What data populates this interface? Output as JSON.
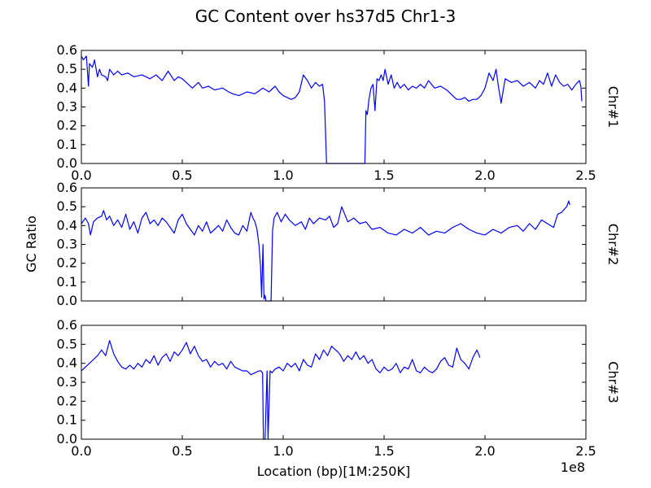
{
  "figure": {
    "title": "GC Content over hs37d5 Chr1-3",
    "ylabel": "GC Ratio",
    "xlabel": "Location (bp)[1M:250K]",
    "x_offset_label": "1e8",
    "line_color": "#0000ff"
  },
  "chart_data": [
    {
      "type": "line",
      "title": "GC Content over hs37d5 Chr1-3",
      "panel_label": "Chr#1",
      "xlabel": "Location (bp)[1M:250K]",
      "ylabel": "GC Ratio",
      "xlim": [
        0,
        250000000
      ],
      "ylim": [
        0.0,
        0.6
      ],
      "xticks": [
        "0.0",
        "0.5",
        "1.0",
        "1.5",
        "2.0",
        "2.5"
      ],
      "yticks": [
        "0.0",
        "0.1",
        "0.2",
        "0.3",
        "0.4",
        "0.5",
        "0.6"
      ],
      "grid": false,
      "x": [
        0,
        1000000,
        2500000,
        3500000,
        4000000,
        5500000,
        6500000,
        8000000,
        9000000,
        10000000,
        12000000,
        13000000,
        14000000,
        16000000,
        18000000,
        20000000,
        23000000,
        26000000,
        30000000,
        34000000,
        37000000,
        40000000,
        43000000,
        46000000,
        48000000,
        50000000,
        52000000,
        55000000,
        58000000,
        60000000,
        63000000,
        66000000,
        70000000,
        73000000,
        75000000,
        78000000,
        82000000,
        86000000,
        90000000,
        93000000,
        96000000,
        98000000,
        100000000,
        102000000,
        104000000,
        106000000,
        108000000,
        110000000,
        112000000,
        114000000,
        116000000,
        118000000,
        119500000,
        120500000,
        121500000,
        125000000,
        130000000,
        135000000,
        140500000,
        141000000,
        141700000,
        142500000,
        143500000,
        144500000,
        145500000,
        146500000,
        147500000,
        148500000,
        149500000,
        150500000,
        152000000,
        153500000,
        155000000,
        156500000,
        158000000,
        160000000,
        162000000,
        164000000,
        166000000,
        168000000,
        170000000,
        172000000,
        175000000,
        178000000,
        181000000,
        184000000,
        186000000,
        188000000,
        190000000,
        192000000,
        194000000,
        196000000,
        198000000,
        200000000,
        202000000,
        204000000,
        205500000,
        206500000,
        208000000,
        210000000,
        213000000,
        216000000,
        219000000,
        222000000,
        225000000,
        227000000,
        229000000,
        231000000,
        233000000,
        235000000,
        237000000,
        239000000,
        241000000,
        243000000,
        245000000,
        246800000,
        247500000,
        248000000
      ],
      "series": [
        {
          "values": [
            0.57,
            0.55,
            0.57,
            0.41,
            0.53,
            0.51,
            0.55,
            0.46,
            0.5,
            0.47,
            0.46,
            0.44,
            0.5,
            0.47,
            0.49,
            0.47,
            0.48,
            0.46,
            0.47,
            0.45,
            0.47,
            0.44,
            0.49,
            0.44,
            0.46,
            0.45,
            0.43,
            0.4,
            0.43,
            0.4,
            0.41,
            0.39,
            0.4,
            0.38,
            0.37,
            0.36,
            0.38,
            0.37,
            0.4,
            0.38,
            0.41,
            0.38,
            0.36,
            0.35,
            0.34,
            0.35,
            0.38,
            0.47,
            0.44,
            0.4,
            0.43,
            0.41,
            0.42,
            0.33,
            0.0,
            0.0,
            0.0,
            0.0,
            0.0,
            0.28,
            0.26,
            0.34,
            0.4,
            0.42,
            0.28,
            0.45,
            0.44,
            0.47,
            0.44,
            0.5,
            0.42,
            0.47,
            0.4,
            0.43,
            0.4,
            0.42,
            0.39,
            0.41,
            0.4,
            0.42,
            0.4,
            0.44,
            0.4,
            0.41,
            0.39,
            0.36,
            0.34,
            0.34,
            0.35,
            0.33,
            0.34,
            0.34,
            0.36,
            0.4,
            0.48,
            0.44,
            0.5,
            0.42,
            0.32,
            0.45,
            0.43,
            0.44,
            0.41,
            0.43,
            0.4,
            0.44,
            0.42,
            0.48,
            0.41,
            0.47,
            0.43,
            0.41,
            0.42,
            0.39,
            0.42,
            0.44,
            0.41,
            0.33
          ]
        }
      ]
    },
    {
      "type": "line",
      "panel_label": "Chr#2",
      "xlim": [
        0,
        250000000
      ],
      "ylim": [
        0.0,
        0.6
      ],
      "yticks": [
        "0.0",
        "0.1",
        "0.2",
        "0.3",
        "0.4",
        "0.5",
        "0.6"
      ],
      "grid": false,
      "x": [
        0,
        2000000,
        3500000,
        4500000,
        6000000,
        8000000,
        10000000,
        11000000,
        12500000,
        14000000,
        16000000,
        18000000,
        20000000,
        22000000,
        24000000,
        26000000,
        28000000,
        30000000,
        32000000,
        34000000,
        36000000,
        38000000,
        40000000,
        42000000,
        44000000,
        46000000,
        48000000,
        50000000,
        52000000,
        54000000,
        56000000,
        58000000,
        60000000,
        62000000,
        64000000,
        66000000,
        68000000,
        70000000,
        72000000,
        74000000,
        76000000,
        78000000,
        80000000,
        82000000,
        84000000,
        85000000,
        86000000,
        87000000,
        88000000,
        88800000,
        89300000,
        90000000,
        90500000,
        91000000,
        91500000,
        92000000,
        93000000,
        94000000,
        94700000,
        95500000,
        97000000,
        99000000,
        101000000,
        103000000,
        106000000,
        109000000,
        111000000,
        113000000,
        115000000,
        118000000,
        121000000,
        123000000,
        125000000,
        127000000,
        129000000,
        132000000,
        135000000,
        138000000,
        141000000,
        144000000,
        148000000,
        152000000,
        156000000,
        160000000,
        164000000,
        168000000,
        172000000,
        176000000,
        180000000,
        184000000,
        188000000,
        192000000,
        196000000,
        200000000,
        204000000,
        208000000,
        212000000,
        216000000,
        219000000,
        222000000,
        225000000,
        228000000,
        231000000,
        234000000,
        236000000,
        238000000,
        239500000,
        240500000,
        241500000,
        242000000
      ],
      "series": [
        {
          "values": [
            0.41,
            0.44,
            0.41,
            0.35,
            0.42,
            0.44,
            0.45,
            0.48,
            0.43,
            0.45,
            0.4,
            0.43,
            0.39,
            0.46,
            0.38,
            0.42,
            0.36,
            0.44,
            0.47,
            0.41,
            0.43,
            0.4,
            0.44,
            0.42,
            0.39,
            0.36,
            0.43,
            0.46,
            0.41,
            0.38,
            0.35,
            0.4,
            0.37,
            0.42,
            0.36,
            0.38,
            0.4,
            0.37,
            0.43,
            0.39,
            0.36,
            0.35,
            0.4,
            0.37,
            0.47,
            0.44,
            0.42,
            0.38,
            0.3,
            0.18,
            0.02,
            0.3,
            0.01,
            0.03,
            0.0,
            0.0,
            0.0,
            0.0,
            0.37,
            0.44,
            0.47,
            0.42,
            0.46,
            0.43,
            0.4,
            0.42,
            0.38,
            0.44,
            0.41,
            0.44,
            0.43,
            0.45,
            0.39,
            0.41,
            0.5,
            0.42,
            0.44,
            0.41,
            0.42,
            0.38,
            0.39,
            0.36,
            0.35,
            0.38,
            0.36,
            0.39,
            0.35,
            0.37,
            0.36,
            0.39,
            0.41,
            0.38,
            0.36,
            0.35,
            0.38,
            0.36,
            0.39,
            0.4,
            0.37,
            0.41,
            0.38,
            0.43,
            0.41,
            0.39,
            0.46,
            0.47,
            0.49,
            0.5,
            0.53,
            0.51
          ]
        }
      ]
    },
    {
      "type": "line",
      "panel_label": "Chr#3",
      "xlim": [
        0,
        250000000
      ],
      "ylim": [
        0.0,
        0.6
      ],
      "yticks": [
        "0.0",
        "0.1",
        "0.2",
        "0.3",
        "0.4",
        "0.5",
        "0.6"
      ],
      "grid": false,
      "x": [
        0,
        2000000,
        4000000,
        6000000,
        8000000,
        10000000,
        12000000,
        14000000,
        16000000,
        18000000,
        20000000,
        22000000,
        24000000,
        26000000,
        28000000,
        30000000,
        32000000,
        34000000,
        36000000,
        38000000,
        40000000,
        42000000,
        44000000,
        46000000,
        48000000,
        50000000,
        52000000,
        54000000,
        56000000,
        58000000,
        60000000,
        62000000,
        64000000,
        66000000,
        68000000,
        70000000,
        72000000,
        74000000,
        76000000,
        78000000,
        80000000,
        82000000,
        84000000,
        86000000,
        88000000,
        89000000,
        89800000,
        90200000,
        91000000,
        92000000,
        92500000,
        93500000,
        94500000,
        96000000,
        98000000,
        100000000,
        102000000,
        104000000,
        106000000,
        108000000,
        110000000,
        112000000,
        114000000,
        116000000,
        118000000,
        120000000,
        122000000,
        124000000,
        126000000,
        128000000,
        130000000,
        132000000,
        134000000,
        136000000,
        138000000,
        140000000,
        142000000,
        144000000,
        146000000,
        148000000,
        150000000,
        152000000,
        154000000,
        156000000,
        158000000,
        160000000,
        162000000,
        164000000,
        166000000,
        168000000,
        170000000,
        172000000,
        174000000,
        176000000,
        178000000,
        180000000,
        182000000,
        184000000,
        186000000,
        188000000,
        190000000,
        192000000,
        194000000,
        196000000,
        197500000
      ],
      "series": [
        {
          "values": [
            0.36,
            0.38,
            0.4,
            0.42,
            0.44,
            0.47,
            0.44,
            0.52,
            0.45,
            0.41,
            0.38,
            0.37,
            0.39,
            0.37,
            0.4,
            0.38,
            0.42,
            0.4,
            0.44,
            0.39,
            0.43,
            0.45,
            0.41,
            0.46,
            0.44,
            0.47,
            0.51,
            0.45,
            0.49,
            0.44,
            0.41,
            0.42,
            0.38,
            0.41,
            0.39,
            0.4,
            0.37,
            0.41,
            0.38,
            0.37,
            0.36,
            0.36,
            0.34,
            0.35,
            0.36,
            0.36,
            0.35,
            0.0,
            0.0,
            0.36,
            0.0,
            0.36,
            0.35,
            0.37,
            0.38,
            0.36,
            0.4,
            0.38,
            0.4,
            0.36,
            0.42,
            0.39,
            0.38,
            0.45,
            0.42,
            0.47,
            0.44,
            0.49,
            0.47,
            0.45,
            0.41,
            0.44,
            0.42,
            0.46,
            0.42,
            0.44,
            0.4,
            0.42,
            0.37,
            0.35,
            0.38,
            0.36,
            0.37,
            0.4,
            0.35,
            0.38,
            0.37,
            0.42,
            0.36,
            0.35,
            0.38,
            0.36,
            0.35,
            0.37,
            0.41,
            0.43,
            0.39,
            0.38,
            0.48,
            0.42,
            0.4,
            0.37,
            0.43,
            0.47,
            0.43
          ]
        }
      ]
    }
  ]
}
